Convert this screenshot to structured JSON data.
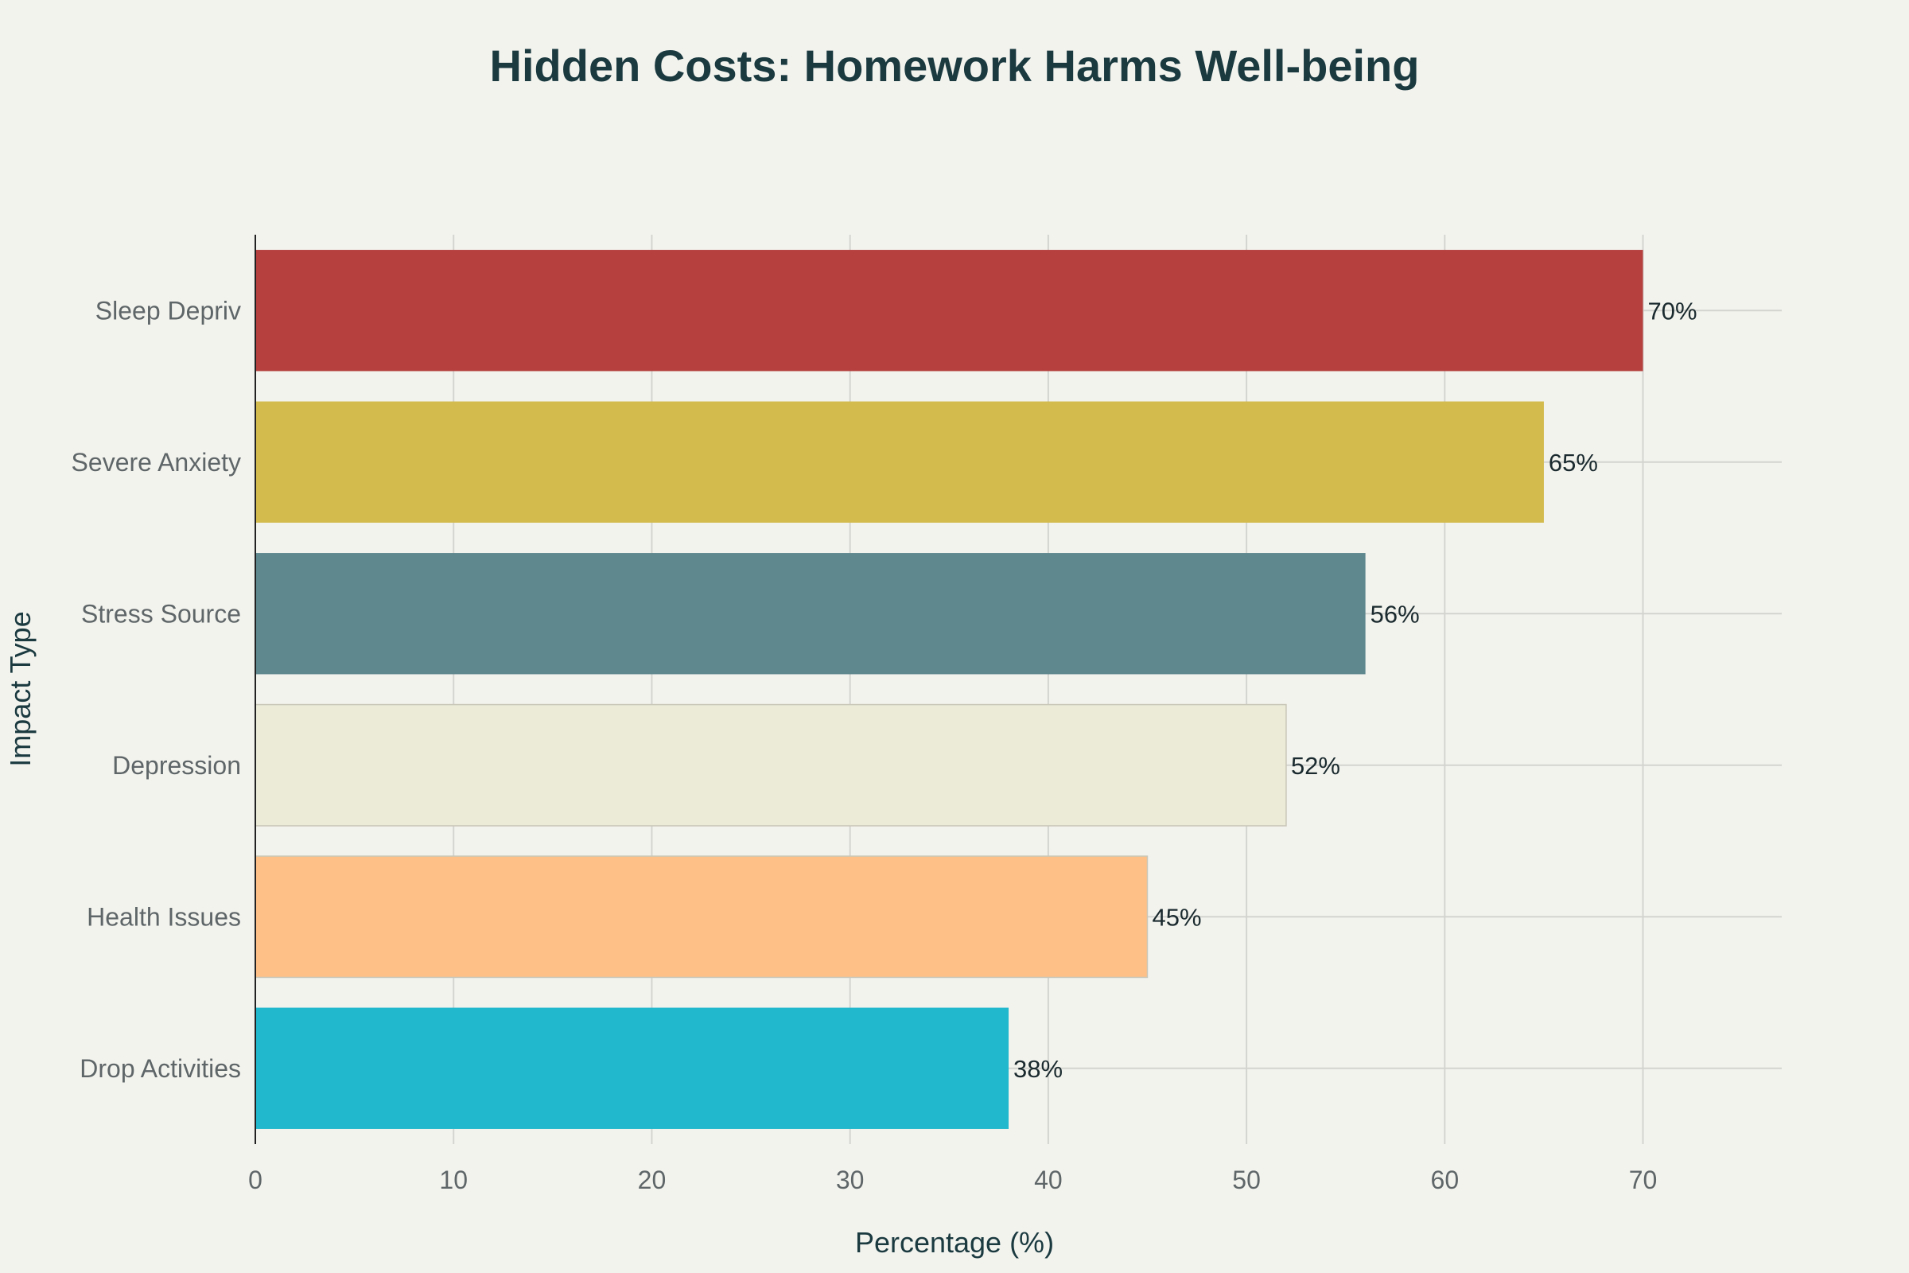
{
  "chart_data": {
    "type": "bar",
    "orientation": "horizontal",
    "title": "Hidden Costs: Homework Harms Well-being",
    "xlabel": "Percentage (%)",
    "ylabel": "Impact Type",
    "categories": [
      "Sleep Depriv",
      "Severe Anxiety",
      "Stress Source",
      "Depression",
      "Health Issues",
      "Drop Activities"
    ],
    "values": [
      70,
      65,
      56,
      52,
      45,
      38
    ],
    "data_labels": [
      "70%",
      "65%",
      "56%",
      "52%",
      "45%",
      "38%"
    ],
    "colors": [
      "#b5403e",
      "#d3bb4e",
      "#5e888e",
      "#ebebd8",
      "#ffc087",
      "#21b7cc"
    ],
    "xlim": [
      0,
      77
    ],
    "xticks": [
      0,
      10,
      20,
      30,
      40,
      50,
      60,
      70
    ],
    "grid": true,
    "background": "#f3f3ee"
  }
}
